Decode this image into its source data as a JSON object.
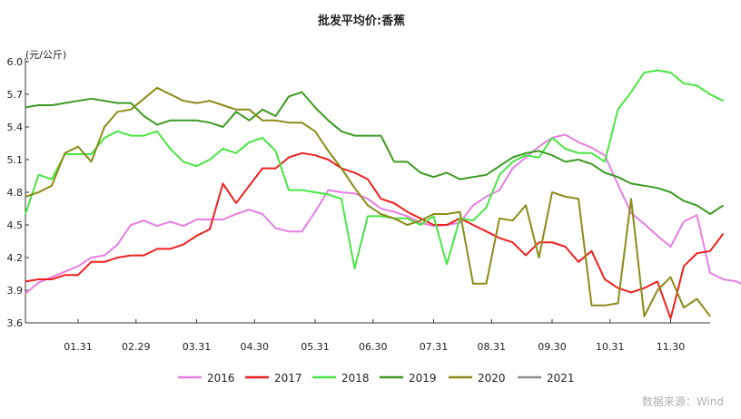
{
  "chart_data": {
    "type": "line",
    "title": "批发平均价:香蕉",
    "ylabel": "(元/公斤)",
    "ylim": [
      3.6,
      6.0
    ],
    "yticks": [
      "6.0",
      "5.7",
      "5.4",
      "5.1",
      "4.8",
      "4.5",
      "4.2",
      "3.9",
      "3.6"
    ],
    "xticks": [
      "01.31",
      "02.29",
      "03.31",
      "04.30",
      "05.31",
      "06.30",
      "07.31",
      "08.31",
      "09.30",
      "10.31",
      "11.30"
    ],
    "xtick_positions": [
      4,
      8.4,
      13,
      17.4,
      22,
      26.4,
      31,
      35.4,
      40,
      44.4,
      49
    ],
    "x_points": 53,
    "source": "数据来源：Wind",
    "series": [
      {
        "name": "2016",
        "color": "#e67ee3",
        "values": [
          3.87,
          3.97,
          4.02,
          4.07,
          4.12,
          4.2,
          4.22,
          4.32,
          4.5,
          4.54,
          4.49,
          4.53,
          4.49,
          4.55,
          4.55,
          4.55,
          4.6,
          4.64,
          4.6,
          4.47,
          4.44,
          4.44,
          4.62,
          4.82,
          4.8,
          4.79,
          4.74,
          4.65,
          4.62,
          4.58,
          4.52,
          4.49,
          4.5,
          4.52,
          4.68,
          4.76,
          4.82,
          5.02,
          5.12,
          5.22,
          5.3,
          5.33,
          5.26,
          5.21,
          5.14,
          4.87,
          4.61,
          4.51,
          4.4,
          4.3,
          4.53,
          4.59,
          4.06,
          4.0,
          3.98,
          3.92
        ]
      },
      {
        "name": "2017",
        "color": "#ef1f1f",
        "values": [
          3.98,
          4.0,
          4.0,
          4.04,
          4.04,
          4.16,
          4.16,
          4.2,
          4.22,
          4.22,
          4.28,
          4.28,
          4.32,
          4.4,
          4.46,
          4.88,
          4.7,
          4.86,
          5.02,
          5.02,
          5.12,
          5.16,
          5.14,
          5.1,
          5.02,
          4.98,
          4.92,
          4.74,
          4.7,
          4.62,
          4.56,
          4.5,
          4.5,
          4.56,
          4.5,
          4.44,
          4.38,
          4.34,
          4.22,
          4.34,
          4.34,
          4.3,
          4.16,
          4.26,
          4.0,
          3.92,
          3.88,
          3.92,
          3.98,
          3.64,
          4.12,
          4.24,
          4.26,
          4.42
        ]
      },
      {
        "name": "2018",
        "color": "#49e543",
        "values": [
          4.6,
          4.96,
          4.92,
          5.15,
          5.15,
          5.15,
          5.3,
          5.36,
          5.32,
          5.32,
          5.36,
          5.2,
          5.08,
          5.04,
          5.1,
          5.2,
          5.16,
          5.26,
          5.3,
          5.18,
          4.82,
          4.82,
          4.8,
          4.78,
          4.74,
          4.1,
          4.58,
          4.58,
          4.56,
          4.56,
          4.5,
          4.58,
          4.14,
          4.56,
          4.54,
          4.66,
          4.96,
          5.08,
          5.14,
          5.12,
          5.3,
          5.2,
          5.16,
          5.16,
          5.08,
          5.56,
          5.72,
          5.9,
          5.92,
          5.9,
          5.8,
          5.78,
          5.7,
          5.64
        ]
      },
      {
        "name": "2019",
        "color": "#3b9a20",
        "values": [
          5.58,
          5.6,
          5.6,
          5.62,
          5.64,
          5.66,
          5.64,
          5.62,
          5.62,
          5.5,
          5.42,
          5.46,
          5.46,
          5.46,
          5.44,
          5.4,
          5.54,
          5.46,
          5.56,
          5.5,
          5.68,
          5.72,
          5.58,
          5.46,
          5.36,
          5.32,
          5.32,
          5.32,
          5.08,
          5.08,
          4.98,
          4.94,
          4.98,
          4.92,
          4.94,
          4.96,
          5.04,
          5.12,
          5.16,
          5.18,
          5.14,
          5.08,
          5.1,
          5.06,
          4.98,
          4.94,
          4.88,
          4.86,
          4.84,
          4.8,
          4.72,
          4.68,
          4.6,
          4.68
        ]
      },
      {
        "name": "2020",
        "color": "#8b8b17",
        "values": [
          4.76,
          4.8,
          4.86,
          5.16,
          5.22,
          5.08,
          5.4,
          5.54,
          5.56,
          5.66,
          5.76,
          5.7,
          5.64,
          5.62,
          5.64,
          5.6,
          5.56,
          5.56,
          5.46,
          5.46,
          5.44,
          5.44,
          5.36,
          5.18,
          5.02,
          4.84,
          4.68,
          4.6,
          4.56,
          4.5,
          4.54,
          4.6,
          4.6,
          4.62,
          3.96,
          3.96,
          4.56,
          4.54,
          4.68,
          4.2,
          4.8,
          4.76,
          4.74,
          3.76,
          3.76,
          3.78,
          4.74,
          3.66,
          3.9,
          4.02,
          3.74,
          3.82,
          3.66
        ]
      },
      {
        "name": "2021",
        "color": "#8e8e8e",
        "values": []
      }
    ]
  }
}
